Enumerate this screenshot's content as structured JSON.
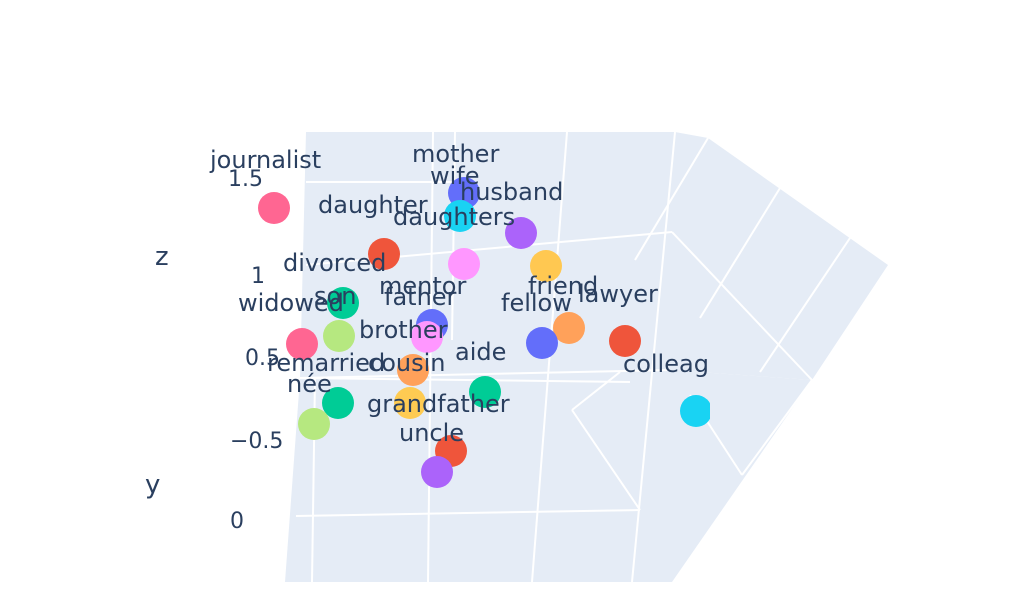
{
  "chart_data": {
    "type": "scatter",
    "dimensions": "3d",
    "axes": {
      "y_title": "y",
      "z_title": "z",
      "y_ticks": [
        "0"
      ],
      "z_ticks": [
        "1.5",
        "1",
        "0.5",
        "−0.5"
      ]
    },
    "grid": true,
    "background": "#e5ecf6",
    "points": [
      {
        "label": "journalist",
        "color": "#ff6692"
      },
      {
        "label": "mother",
        "color": "#636efa"
      },
      {
        "label": "wife",
        "color": "#19d3f3"
      },
      {
        "label": "husband",
        "color": "#ab63fa"
      },
      {
        "label": "daughter",
        "color": "#ef553b"
      },
      {
        "label": "daughters",
        "color": "#ff97ff"
      },
      {
        "label": "divorced",
        "color": "#00cc96"
      },
      {
        "label": "mentor",
        "color": "#ffc851"
      },
      {
        "label": "son",
        "color": "#b6e880"
      },
      {
        "label": "father",
        "color": "#636efa"
      },
      {
        "label": "widowed",
        "color": "#ff6692"
      },
      {
        "label": "friend",
        "color": "#ffa15a"
      },
      {
        "label": "fellow",
        "color": "#636efa"
      },
      {
        "label": "lawyer",
        "color": "#ef553b"
      },
      {
        "label": "brother",
        "color": "#ff97ff"
      },
      {
        "label": "cousin",
        "color": "#ffa15a"
      },
      {
        "label": "aide",
        "color": "#00cc96"
      },
      {
        "label": "remarried",
        "color": "#00cc96"
      },
      {
        "label": "née",
        "color": "#b6e880"
      },
      {
        "label": "grandfather",
        "color": "#fecb52"
      },
      {
        "label": "colleague",
        "color": "#19d3f3"
      },
      {
        "label": "uncle",
        "color": "#ef553b"
      },
      {
        "label": "",
        "color": "#ab63fa"
      }
    ]
  }
}
